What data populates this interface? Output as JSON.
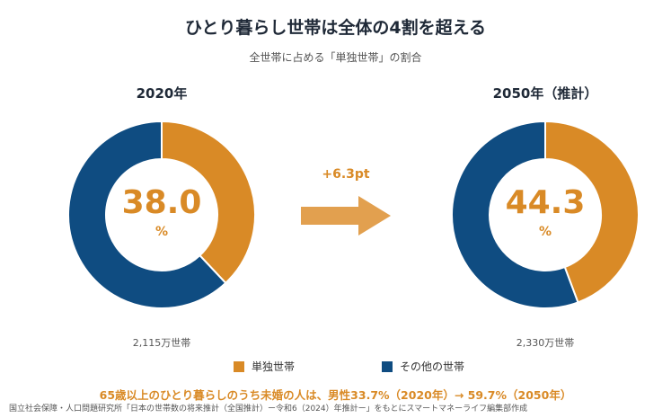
{
  "title": "ひとり暮らし世帯は全体の4割を超える",
  "subtitle": "全世帯に占める「単独世帯」の割合",
  "chart_data": [
    {
      "type": "pie",
      "title": "2020年",
      "categories": [
        "単独世帯",
        "その他の世帯"
      ],
      "values": [
        38.0,
        62.0
      ],
      "center_value": "38.0",
      "center_unit": "%",
      "total_label": "2,115万世帯"
    },
    {
      "type": "pie",
      "title": "2050年（推計）",
      "categories": [
        "単独世帯",
        "その他の世帯"
      ],
      "values": [
        44.3,
        55.7
      ],
      "center_value": "44.3",
      "center_unit": "%",
      "total_label": "2,330万世帯"
    }
  ],
  "change_label": "+6.3pt",
  "legend": [
    {
      "label": "単独世帯",
      "color": "#d98a26"
    },
    {
      "label": "その他の世帯",
      "color": "#0f4c81"
    }
  ],
  "colors": {
    "single": "#d98a26",
    "other": "#0f4c81",
    "arrow": "#e2a04f"
  },
  "note": "65歳以上のひとり暮らしのうち未婚の人は、男性33.7%（2020年）→ 59.7%（2050年）",
  "source": "国立社会保障・人口問題研究所「日本の世帯数の将来推計（全国推計）ー令和6（2024）年推計ー」をもとにスマートマネーライフ編集部作成"
}
